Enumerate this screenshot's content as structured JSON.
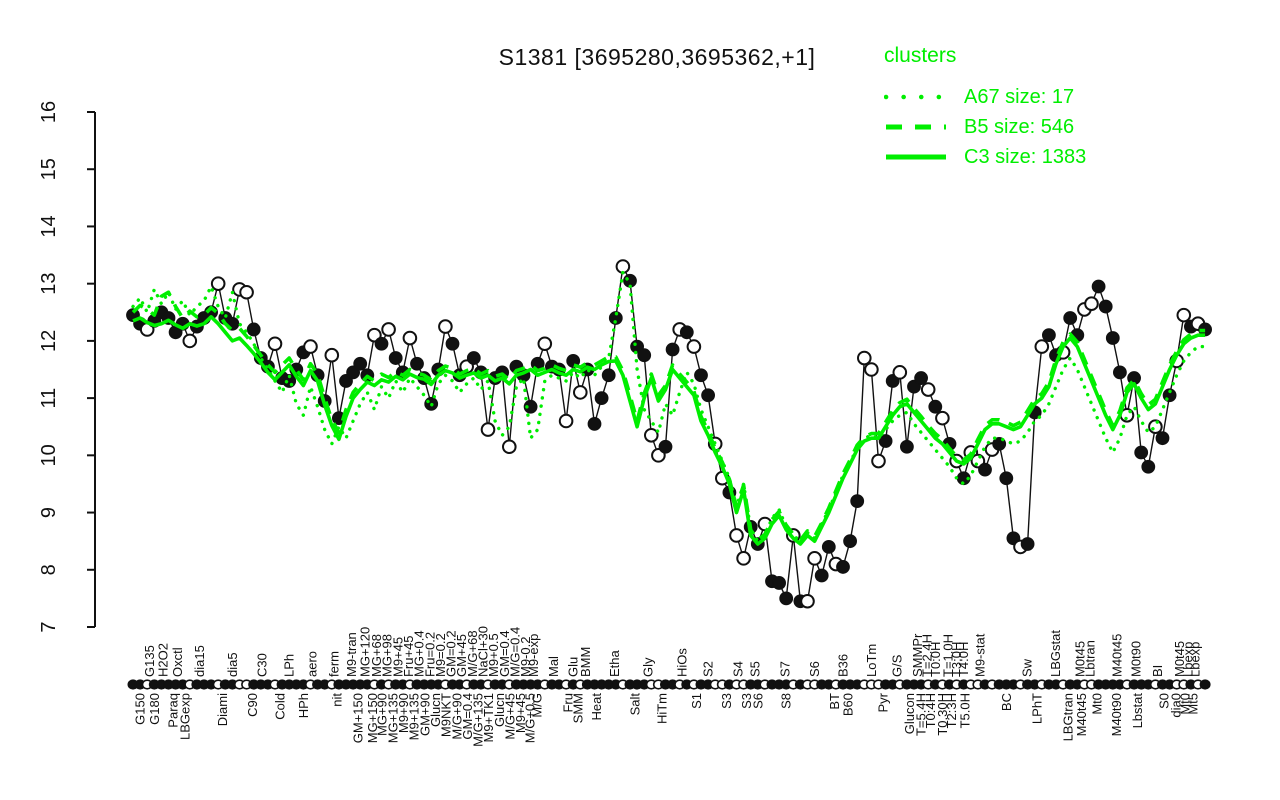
{
  "page": {
    "background": "#ffffff"
  },
  "title": "S1381 [3695280,3695362,+1]",
  "legend": {
    "title": "clusters",
    "items": [
      {
        "name": "A67",
        "size": 17,
        "label": "A67 size: 17",
        "style": "dotted"
      },
      {
        "name": "B5",
        "size": 546,
        "label": "B5 size: 546",
        "style": "dashed"
      },
      {
        "name": "C3",
        "size": 1383,
        "label": "C3 size: 1383",
        "style": "solid"
      }
    ]
  },
  "colors": {
    "cluster_green": "#00ee00",
    "series_black": "#111111",
    "marker_open_fill": "#ffffff"
  },
  "chart_data": {
    "type": "line",
    "title": "S1381 [3695280,3695362,+1]",
    "ylabel": "",
    "xlabel": "",
    "ylim": [
      7,
      16
    ],
    "yticks": [
      7,
      8,
      9,
      10,
      11,
      12,
      13,
      14,
      15,
      16
    ],
    "grid": false,
    "legend_position": "top-right",
    "n_points": 152,
    "x_labels_top": [
      {
        "pos": 2.3,
        "text": "G135"
      },
      {
        "pos": 4.2,
        "text": "H2O2"
      },
      {
        "pos": 6.3,
        "text": "Oxctl"
      },
      {
        "pos": 9.4,
        "text": "dia15"
      },
      {
        "pos": 14,
        "text": "dia5"
      },
      {
        "pos": 18.2,
        "text": "C30"
      },
      {
        "pos": 22,
        "text": "LPh"
      },
      {
        "pos": 25.2,
        "text": "aero"
      },
      {
        "pos": 28.3,
        "text": "ferm"
      },
      {
        "pos": 30.8,
        "text": "M9-tran"
      },
      {
        "pos": 32.7,
        "text": "MG+120"
      },
      {
        "pos": 34.3,
        "text": "MG+68"
      },
      {
        "pos": 35.8,
        "text": "MG+98"
      },
      {
        "pos": 37.3,
        "text": "M9+45"
      },
      {
        "pos": 38.8,
        "text": "Fru+45"
      },
      {
        "pos": 40.3,
        "text": "MG+0.4"
      },
      {
        "pos": 41.8,
        "text": "Fru=0.2"
      },
      {
        "pos": 43.3,
        "text": "M9=0.2"
      },
      {
        "pos": 44.8,
        "text": "GM=0.2"
      },
      {
        "pos": 46.3,
        "text": "GM+45"
      },
      {
        "pos": 47.8,
        "text": "M/G+68"
      },
      {
        "pos": 49.3,
        "text": "NaCl+30"
      },
      {
        "pos": 50.8,
        "text": "M9+0.5"
      },
      {
        "pos": 52.3,
        "text": "GM=0.4"
      },
      {
        "pos": 53.8,
        "text": "M/G=0.4"
      },
      {
        "pos": 55.3,
        "text": "M9-0.2"
      },
      {
        "pos": 56.4,
        "text": "M9-exp"
      },
      {
        "pos": 59.2,
        "text": "Mal"
      },
      {
        "pos": 62,
        "text": "Glu"
      },
      {
        "pos": 63.7,
        "text": "BMM"
      },
      {
        "pos": 67.8,
        "text": "Etha"
      },
      {
        "pos": 72.5,
        "text": "Gly"
      },
      {
        "pos": 77.3,
        "text": "HiOs"
      },
      {
        "pos": 81,
        "text": "S2"
      },
      {
        "pos": 85.2,
        "text": "S4"
      },
      {
        "pos": 87.6,
        "text": "S5"
      },
      {
        "pos": 91.8,
        "text": "S7"
      },
      {
        "pos": 96,
        "text": "S6"
      },
      {
        "pos": 100,
        "text": "B36"
      },
      {
        "pos": 104,
        "text": "LoTm"
      },
      {
        "pos": 107.6,
        "text": "G/S"
      },
      {
        "pos": 110.5,
        "text": "SMMPr"
      },
      {
        "pos": 111.8,
        "text": "T=2.4H"
      },
      {
        "pos": 113,
        "text": "T0:0H"
      },
      {
        "pos": 114.8,
        "text": "T=1.0H"
      },
      {
        "pos": 116,
        "text": "T3:0H"
      },
      {
        "pos": 117,
        "text": "T4:0H"
      },
      {
        "pos": 119.3,
        "text": "M9-stat"
      },
      {
        "pos": 125.9,
        "text": "Sw"
      },
      {
        "pos": 129.9,
        "text": "LBGstat"
      },
      {
        "pos": 133.4,
        "text": "M0t45"
      },
      {
        "pos": 134.8,
        "text": "Lbtran"
      },
      {
        "pos": 138.6,
        "text": "M40t45"
      },
      {
        "pos": 141.3,
        "text": "M0t90"
      },
      {
        "pos": 144.3,
        "text": "BI"
      },
      {
        "pos": 147.4,
        "text": "M0t45"
      },
      {
        "pos": 148.6,
        "text": "Lbexp"
      },
      {
        "pos": 149.6,
        "text": "Lbexp"
      }
    ],
    "x_labels_bottom": [
      {
        "pos": 1,
        "text": "G150"
      },
      {
        "pos": 3,
        "text": "G180"
      },
      {
        "pos": 5.6,
        "text": "Paraq"
      },
      {
        "pos": 7.3,
        "text": "LBGexp"
      },
      {
        "pos": 12.6,
        "text": "Diami"
      },
      {
        "pos": 16.8,
        "text": "C90"
      },
      {
        "pos": 20.7,
        "text": "Cold"
      },
      {
        "pos": 24,
        "text": "HPh"
      },
      {
        "pos": 28.7,
        "text": "nit"
      },
      {
        "pos": 31.7,
        "text": "GM+150"
      },
      {
        "pos": 33.7,
        "text": "MG+150"
      },
      {
        "pos": 35.1,
        "text": "MG+90"
      },
      {
        "pos": 36.6,
        "text": "MG+135"
      },
      {
        "pos": 38.1,
        "text": "M9+90"
      },
      {
        "pos": 39.6,
        "text": "M9+135"
      },
      {
        "pos": 41.1,
        "text": "GM+90"
      },
      {
        "pos": 42.6,
        "text": "Glucn"
      },
      {
        "pos": 44.1,
        "text": "M9NKT"
      },
      {
        "pos": 45.6,
        "text": "M/G+90"
      },
      {
        "pos": 47.1,
        "text": "GM=0.4"
      },
      {
        "pos": 48.6,
        "text": "M/G+135"
      },
      {
        "pos": 50.1,
        "text": "M9+TK1"
      },
      {
        "pos": 51.6,
        "text": "Glucn"
      },
      {
        "pos": 53.1,
        "text": "M/G+45"
      },
      {
        "pos": 54.6,
        "text": "M9+45"
      },
      {
        "pos": 55.9,
        "text": "M/G+0.5"
      },
      {
        "pos": 56.9,
        "text": "M/G"
      },
      {
        "pos": 61.3,
        "text": "Fru"
      },
      {
        "pos": 62.7,
        "text": "SMM"
      },
      {
        "pos": 65.3,
        "text": "Heat"
      },
      {
        "pos": 70.7,
        "text": "Salt"
      },
      {
        "pos": 74.5,
        "text": "HiTm"
      },
      {
        "pos": 79.4,
        "text": "S1"
      },
      {
        "pos": 83.6,
        "text": "S3"
      },
      {
        "pos": 86.4,
        "text": "S3"
      },
      {
        "pos": 88,
        "text": "S6"
      },
      {
        "pos": 92,
        "text": "S8"
      },
      {
        "pos": 98.8,
        "text": "BT"
      },
      {
        "pos": 100.7,
        "text": "B60"
      },
      {
        "pos": 105.6,
        "text": "Pyr"
      },
      {
        "pos": 109.4,
        "text": "Glucon"
      },
      {
        "pos": 111,
        "text": "T=5.4H"
      },
      {
        "pos": 112.3,
        "text": "T0:4H"
      },
      {
        "pos": 114,
        "text": "T0.30H"
      },
      {
        "pos": 115.3,
        "text": "T2:3H"
      },
      {
        "pos": 117.2,
        "text": "T5.0H"
      },
      {
        "pos": 123,
        "text": "BC"
      },
      {
        "pos": 127.3,
        "text": "LPhT"
      },
      {
        "pos": 131.7,
        "text": "LBGtran"
      },
      {
        "pos": 133.6,
        "text": "M40t45"
      },
      {
        "pos": 135.8,
        "text": "Mt0"
      },
      {
        "pos": 138.5,
        "text": "M40t90"
      },
      {
        "pos": 141.5,
        "text": "Lbstat"
      },
      {
        "pos": 145.2,
        "text": "S0"
      },
      {
        "pos": 146.9,
        "text": "dia0"
      },
      {
        "pos": 148.2,
        "text": "Mt0"
      },
      {
        "pos": 149.3,
        "text": "Mt5"
      }
    ],
    "series": [
      {
        "name": "S1381 probe expression",
        "style": "scatter-line",
        "color": "#111111",
        "marker_open_indices": [
          2,
          8,
          12,
          15,
          16,
          20,
          25,
          28,
          34,
          36,
          39,
          44,
          47,
          50,
          53,
          58,
          61,
          63,
          69,
          73,
          74,
          77,
          79,
          82,
          83,
          85,
          86,
          89,
          93,
          95,
          96,
          99,
          103,
          104,
          105,
          108,
          112,
          114,
          116,
          118,
          119,
          121,
          125,
          128,
          131,
          134,
          135,
          140,
          144,
          147,
          148,
          150
        ],
        "values": [
          12.45,
          12.3,
          12.2,
          12.35,
          12.5,
          12.4,
          12.15,
          12.3,
          12.0,
          12.25,
          12.4,
          12.5,
          13.0,
          12.4,
          12.3,
          12.9,
          12.85,
          12.2,
          11.7,
          11.55,
          11.95,
          11.35,
          11.3,
          11.5,
          11.8,
          11.9,
          11.4,
          10.95,
          11.75,
          10.65,
          11.3,
          11.45,
          11.6,
          11.4,
          12.1,
          11.95,
          12.2,
          11.7,
          11.45,
          12.05,
          11.6,
          11.35,
          10.9,
          11.5,
          12.25,
          11.95,
          11.4,
          11.55,
          11.7,
          11.45,
          10.45,
          11.35,
          11.45,
          10.15,
          11.55,
          11.4,
          10.85,
          11.6,
          11.95,
          11.55,
          11.5,
          10.6,
          11.65,
          11.1,
          11.5,
          10.55,
          11.0,
          11.4,
          12.4,
          13.3,
          13.05,
          11.9,
          11.75,
          10.35,
          10.0,
          10.15,
          11.85,
          12.2,
          12.15,
          11.9,
          11.4,
          11.05,
          10.2,
          9.6,
          9.35,
          8.6,
          8.2,
          8.75,
          8.45,
          8.8,
          7.8,
          7.77,
          7.5,
          8.6,
          7.45,
          7.45,
          8.2,
          7.9,
          8.4,
          8.1,
          8.05,
          8.5,
          9.2,
          11.7,
          11.5,
          9.9,
          10.25,
          11.3,
          11.45,
          10.15,
          11.2,
          11.35,
          11.15,
          10.85,
          10.65,
          10.2,
          9.9,
          9.6,
          10.05,
          9.9,
          9.75,
          10.1,
          10.2,
          9.6,
          8.55,
          8.4,
          8.45,
          10.75,
          11.9,
          12.1,
          11.75,
          11.8,
          12.4,
          12.1,
          12.55,
          12.65,
          12.95,
          12.6,
          12.05,
          11.45,
          10.7,
          11.35,
          10.05,
          9.8,
          10.5,
          10.3,
          11.05,
          11.65,
          12.45,
          12.25,
          12.3,
          12.2
        ]
      },
      {
        "name": "A67 size: 17",
        "style": "dotted",
        "color": "#00ee00",
        "values": [
          12.6,
          12.75,
          12.5,
          12.9,
          12.65,
          12.85,
          12.55,
          12.7,
          12.45,
          12.6,
          12.7,
          12.95,
          12.6,
          12.4,
          12.85,
          12.3,
          12.15,
          11.95,
          11.7,
          11.5,
          11.3,
          11.1,
          11.4,
          10.9,
          10.7,
          11.2,
          10.85,
          10.45,
          10.2,
          10.5,
          10.3,
          10.6,
          10.9,
          11.1,
          10.8,
          11.2,
          11.0,
          11.3,
          11.1,
          11.35,
          11.2,
          11.05,
          10.85,
          11.25,
          11.4,
          11.3,
          11.1,
          11.25,
          11.35,
          11.15,
          11.3,
          10.6,
          10.35,
          10.5,
          11.2,
          11.35,
          10.3,
          10.45,
          11.3,
          11.4,
          11.35,
          11.3,
          11.45,
          11.35,
          11.5,
          11.4,
          11.55,
          11.7,
          12.4,
          13.2,
          13.0,
          11.5,
          10.8,
          10.6,
          10.4,
          10.9,
          10.7,
          11.1,
          11.45,
          11.25,
          10.8,
          10.5,
          10.2,
          9.9,
          9.6,
          9.1,
          9.5,
          8.7,
          8.5,
          8.6,
          8.9,
          9.05,
          8.75,
          8.6,
          8.5,
          8.65,
          8.55,
          8.8,
          9.05,
          9.35,
          9.65,
          9.9,
          10.1,
          10.3,
          10.35,
          10.3,
          10.45,
          10.6,
          10.7,
          10.75,
          10.55,
          10.4,
          10.25,
          10.1,
          9.95,
          9.8,
          9.6,
          9.5,
          9.65,
          9.9,
          10.15,
          10.3,
          10.3,
          10.25,
          10.2,
          10.25,
          10.4,
          10.6,
          10.7,
          10.9,
          11.2,
          11.5,
          11.7,
          11.5,
          11.2,
          10.9,
          10.6,
          10.3,
          10.05,
          10.3,
          10.7,
          10.85,
          10.6,
          10.4,
          10.5,
          10.8,
          11.1,
          11.4,
          11.65,
          11.8,
          11.9,
          11.9
        ]
      },
      {
        "name": "B5 size: 546",
        "style": "dashed",
        "color": "#00ee00",
        "values": [
          12.5,
          12.62,
          12.55,
          12.45,
          12.78,
          12.85,
          12.6,
          12.4,
          12.52,
          12.42,
          12.45,
          12.58,
          12.48,
          12.3,
          12.18,
          12.22,
          12.08,
          11.92,
          11.75,
          11.58,
          11.45,
          11.58,
          11.7,
          11.5,
          11.32,
          11.6,
          11.42,
          11.0,
          10.62,
          10.4,
          10.8,
          11.1,
          11.25,
          11.38,
          11.3,
          11.42,
          11.36,
          11.46,
          11.4,
          11.5,
          11.44,
          11.4,
          11.32,
          11.48,
          11.56,
          11.52,
          11.42,
          11.48,
          11.52,
          11.42,
          11.48,
          11.38,
          11.42,
          11.32,
          11.48,
          11.52,
          11.58,
          11.48,
          11.52,
          11.58,
          11.52,
          11.48,
          11.58,
          11.54,
          11.62,
          11.58,
          11.65,
          11.72,
          11.72,
          11.48,
          11.05,
          10.6,
          11.08,
          11.42,
          11.05,
          11.22,
          11.58,
          11.42,
          11.28,
          11.12,
          10.68,
          10.42,
          10.12,
          9.88,
          9.58,
          9.1,
          9.48,
          8.7,
          8.52,
          8.62,
          8.88,
          9.02,
          8.78,
          8.62,
          8.52,
          8.68,
          8.58,
          8.82,
          9.08,
          9.38,
          9.68,
          9.92,
          10.18,
          10.32,
          10.38,
          10.38,
          10.58,
          10.78,
          10.92,
          10.98,
          10.82,
          10.68,
          10.52,
          10.38,
          10.28,
          10.12,
          9.98,
          9.92,
          10.02,
          10.28,
          10.52,
          10.62,
          10.62,
          10.58,
          10.52,
          10.58,
          10.78,
          10.98,
          11.08,
          11.28,
          11.68,
          11.98,
          12.12,
          11.98,
          11.68,
          11.38,
          11.08,
          10.78,
          10.52,
          10.78,
          11.18,
          11.32,
          11.08,
          10.88,
          10.98,
          11.28,
          11.58,
          11.82,
          12.02,
          12.12,
          12.18,
          12.18
        ]
      },
      {
        "name": "C3 size: 1383",
        "style": "solid",
        "color": "#00ee00",
        "values": [
          12.35,
          12.4,
          12.32,
          12.27,
          12.3,
          12.36,
          12.28,
          12.22,
          12.3,
          12.26,
          12.3,
          12.42,
          12.3,
          12.15,
          12.0,
          12.05,
          11.92,
          11.78,
          11.62,
          11.45,
          11.32,
          11.45,
          11.58,
          11.38,
          11.22,
          11.48,
          11.3,
          10.88,
          10.52,
          10.28,
          10.68,
          11.0,
          11.15,
          11.28,
          11.22,
          11.32,
          11.28,
          11.38,
          11.32,
          11.42,
          11.36,
          11.33,
          11.24,
          11.4,
          11.48,
          11.44,
          11.35,
          11.4,
          11.44,
          11.35,
          11.4,
          11.3,
          11.35,
          11.25,
          11.4,
          11.44,
          11.5,
          11.4,
          11.45,
          11.5,
          11.44,
          11.4,
          11.5,
          11.46,
          11.54,
          11.5,
          11.58,
          11.64,
          11.65,
          11.4,
          10.95,
          10.5,
          11.0,
          11.35,
          10.95,
          11.15,
          11.5,
          11.35,
          11.2,
          11.05,
          10.6,
          10.35,
          10.05,
          9.8,
          9.5,
          9.0,
          9.4,
          8.6,
          8.45,
          8.55,
          8.8,
          8.95,
          8.7,
          8.55,
          8.45,
          8.6,
          8.5,
          8.75,
          9.0,
          9.3,
          9.6,
          9.85,
          10.1,
          10.25,
          10.3,
          10.3,
          10.5,
          10.7,
          10.85,
          10.9,
          10.75,
          10.6,
          10.45,
          10.3,
          10.2,
          10.05,
          9.9,
          9.85,
          9.95,
          10.2,
          10.45,
          10.55,
          10.55,
          10.5,
          10.45,
          10.5,
          10.7,
          10.9,
          11.0,
          11.2,
          11.6,
          11.9,
          12.05,
          11.9,
          11.6,
          11.3,
          11.0,
          10.7,
          10.45,
          10.7,
          11.1,
          11.25,
          11.0,
          10.8,
          10.9,
          11.2,
          11.5,
          11.75,
          11.95,
          12.05,
          12.1,
          12.1
        ]
      }
    ],
    "layout": {
      "x_start": 133,
      "x_step": 7.1,
      "plot_top": 112,
      "plot_bottom": 627,
      "axis_x": 95,
      "tick_len": 8,
      "strip_y": 684.5,
      "label_top_y": 677,
      "label_bottom_y": 693
    }
  }
}
